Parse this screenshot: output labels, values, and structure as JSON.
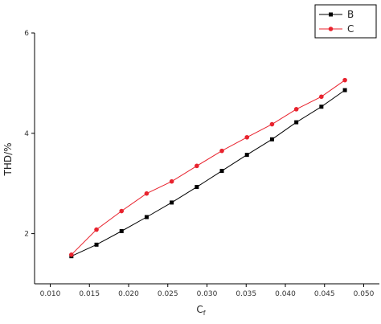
{
  "chart_data": {
    "type": "line",
    "title": "",
    "xlabel": "C",
    "xlabel_subscript": "f",
    "ylabel": "THD/%",
    "xlim": [
      0.008,
      0.052
    ],
    "ylim": [
      1,
      6
    ],
    "x_ticks": [
      0.01,
      0.015,
      0.02,
      0.025,
      0.03,
      0.035,
      0.04,
      0.045,
      0.05
    ],
    "x_tick_labels": [
      "0.010",
      "0.015",
      "0.020",
      "0.025",
      "0.030",
      "0.035",
      "0.040",
      "0.045",
      "0.050"
    ],
    "y_ticks": [
      2,
      4,
      6
    ],
    "y_tick_labels": [
      "2",
      "4",
      "6"
    ],
    "grid": false,
    "legend_position": "top-right",
    "series": [
      {
        "name": "B",
        "color": "#000000",
        "marker": "square",
        "x": [
          0.0127,
          0.0159,
          0.0191,
          0.0223,
          0.0255,
          0.0287,
          0.0319,
          0.0351,
          0.0383,
          0.0414,
          0.0446,
          0.0476
        ],
        "y": [
          1.55,
          1.78,
          2.05,
          2.33,
          2.62,
          2.93,
          3.25,
          3.57,
          3.88,
          4.22,
          4.53,
          4.86
        ]
      },
      {
        "name": "C",
        "color": "#e8232e",
        "marker": "circle",
        "x": [
          0.0127,
          0.0159,
          0.0191,
          0.0223,
          0.0255,
          0.0287,
          0.0319,
          0.0351,
          0.0383,
          0.0414,
          0.0446,
          0.0476
        ],
        "y": [
          1.58,
          2.08,
          2.45,
          2.8,
          3.04,
          3.35,
          3.65,
          3.92,
          4.18,
          4.48,
          4.73,
          5.06
        ]
      }
    ]
  }
}
